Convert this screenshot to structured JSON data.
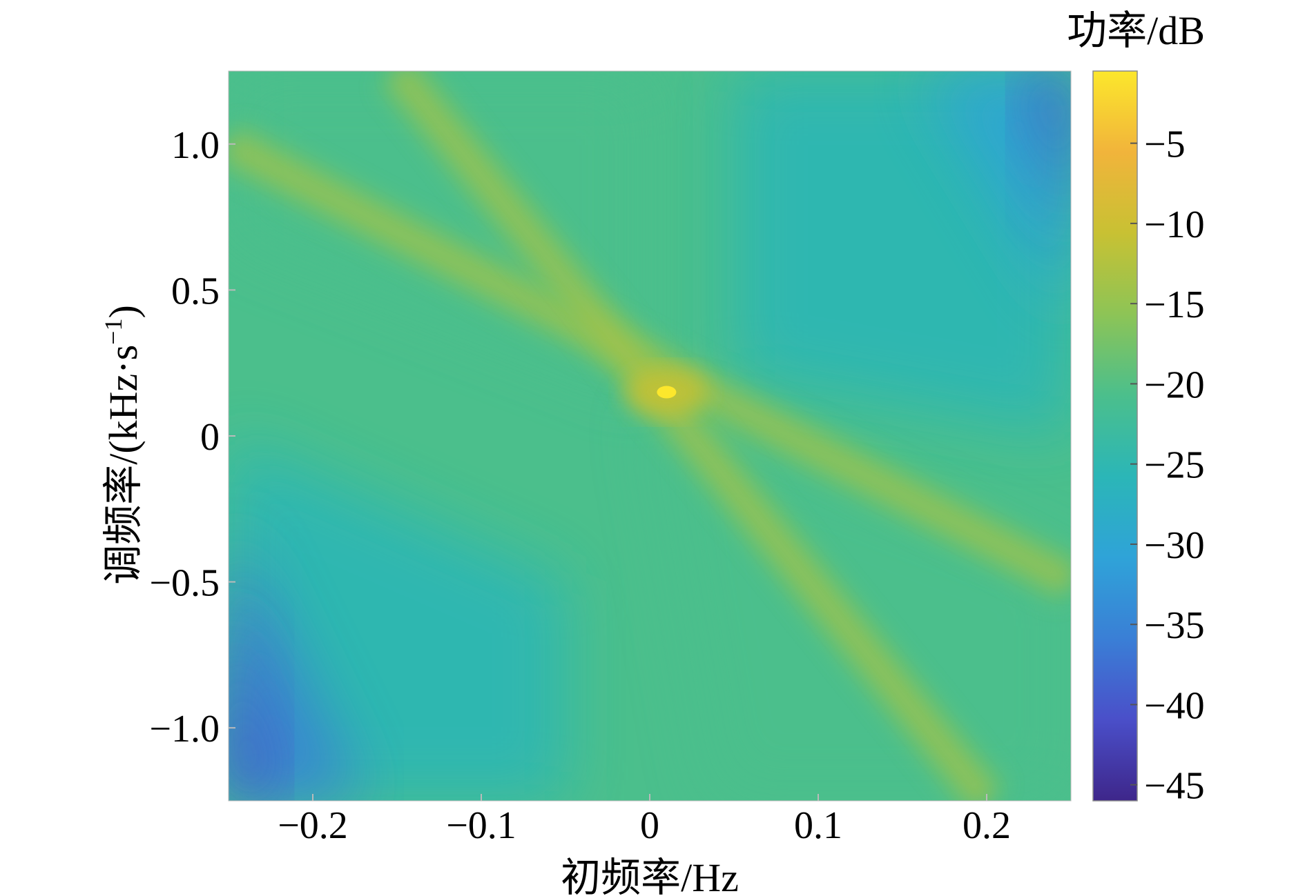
{
  "chart_data": {
    "type": "heatmap",
    "title": "",
    "xlabel": "初频率/Hz",
    "ylabel": "调频率/(kHz·s",
    "ylabel_superscript": "−1",
    "ylabel_close": ")",
    "xlim": [
      -0.25,
      0.25
    ],
    "ylim": [
      -1.25,
      1.25
    ],
    "x_ticks": [
      {
        "value": -0.2,
        "label": "−0.2"
      },
      {
        "value": -0.1,
        "label": "−0.1"
      },
      {
        "value": 0,
        "label": "0"
      },
      {
        "value": 0.1,
        "label": "0.1"
      },
      {
        "value": 0.2,
        "label": "0.2"
      }
    ],
    "y_ticks": [
      {
        "value": 1.0,
        "label": "1.0"
      },
      {
        "value": 0.5,
        "label": "0.5"
      },
      {
        "value": 0,
        "label": "0"
      },
      {
        "value": -0.5,
        "label": "−0.5"
      },
      {
        "value": -1.0,
        "label": "−1.0"
      }
    ],
    "colorbar": {
      "label": "功率/dB",
      "range": [
        -46,
        -0.5
      ],
      "ticks": [
        {
          "value": -5,
          "label": "−5"
        },
        {
          "value": -10,
          "label": "−10"
        },
        {
          "value": -15,
          "label": "−15"
        },
        {
          "value": -20,
          "label": "−20"
        },
        {
          "value": -25,
          "label": "−25"
        },
        {
          "value": -30,
          "label": "−30"
        },
        {
          "value": -35,
          "label": "−35"
        },
        {
          "value": -40,
          "label": "−40"
        },
        {
          "value": -45,
          "label": "−45"
        }
      ],
      "colormap": [
        "#3e268a",
        "#4a4fc9",
        "#3a7fd6",
        "#2fa3d8",
        "#2bb6b7",
        "#4bbf8c",
        "#8dc456",
        "#c8c133",
        "#f1b43b",
        "#fce72c"
      ]
    },
    "peak": {
      "x": 0.01,
      "y": 0.15,
      "power_db": -1
    },
    "ridges": [
      {
        "x_start": -0.25,
        "y_start": 1.0,
        "x_end": 0.25,
        "y_end": -0.5
      },
      {
        "x_start": -0.15,
        "y_start": 1.25,
        "x_end": 0.2,
        "y_end": -1.25
      }
    ],
    "grid": false
  }
}
